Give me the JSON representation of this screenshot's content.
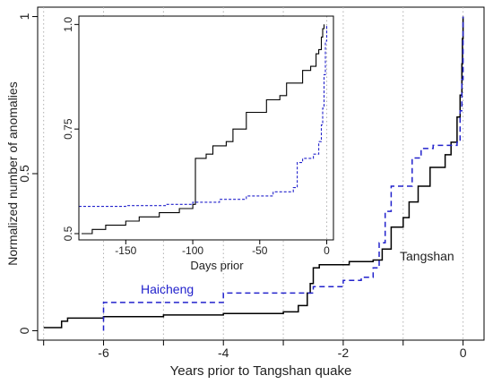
{
  "chart_data": [
    {
      "type": "line",
      "xlabel": "Years prior to Tangshan quake",
      "ylabel": "Normalized number of anomalies",
      "xlim": [
        -7.1,
        0.35
      ],
      "ylim": [
        -0.03,
        1.03
      ],
      "x_ticks": [
        -6,
        -4,
        -2,
        0
      ],
      "x_minor_ticks": [
        -7,
        -5,
        -3,
        -1
      ],
      "y_ticks": [
        0,
        0.5,
        1
      ],
      "y_tick_labels": [
        "0",
        "0.5",
        "1"
      ],
      "grid": "vertical dotted lines at integer years",
      "annotations": [
        "Tangshan",
        "Haicheng"
      ],
      "series": [
        {
          "name": "Tangshan",
          "color": "#000000",
          "style": "solid",
          "points": [
            [
              -7.0,
              0.01
            ],
            [
              -6.7,
              0.03
            ],
            [
              -6.6,
              0.04
            ],
            [
              -6.0,
              0.045
            ],
            [
              -5.0,
              0.05
            ],
            [
              -4.0,
              0.055
            ],
            [
              -3.0,
              0.06
            ],
            [
              -2.75,
              0.08
            ],
            [
              -2.6,
              0.12
            ],
            [
              -2.55,
              0.15
            ],
            [
              -2.5,
              0.2
            ],
            [
              -2.4,
              0.21
            ],
            [
              -1.9,
              0.22
            ],
            [
              -1.5,
              0.225
            ],
            [
              -1.35,
              0.26
            ],
            [
              -1.2,
              0.33
            ],
            [
              -1.0,
              0.36
            ],
            [
              -0.9,
              0.41
            ],
            [
              -0.75,
              0.46
            ],
            [
              -0.55,
              0.52
            ],
            [
              -0.3,
              0.56
            ],
            [
              -0.2,
              0.6
            ],
            [
              -0.1,
              0.68
            ],
            [
              -0.05,
              0.75
            ],
            [
              -0.02,
              0.85
            ],
            [
              -0.01,
              0.93
            ],
            [
              0,
              1.0
            ]
          ]
        },
        {
          "name": "Haicheng",
          "color": "#2222cc",
          "style": "dashed",
          "points": [
            [
              -6.0,
              0.0
            ],
            [
              -6.0,
              0.09
            ],
            [
              -4.0,
              0.1
            ],
            [
              -4.0,
              0.12
            ],
            [
              -2.5,
              0.14
            ],
            [
              -2.0,
              0.16
            ],
            [
              -1.7,
              0.17
            ],
            [
              -1.5,
              0.2
            ],
            [
              -1.4,
              0.28
            ],
            [
              -1.3,
              0.38
            ],
            [
              -1.2,
              0.46
            ],
            [
              -1.0,
              0.46
            ],
            [
              -0.85,
              0.55
            ],
            [
              -0.7,
              0.58
            ],
            [
              -0.5,
              0.59
            ],
            [
              -0.1,
              0.6
            ],
            [
              -0.05,
              0.7
            ],
            [
              -0.02,
              0.8
            ],
            [
              0,
              0.95
            ],
            [
              0,
              1.0
            ]
          ]
        }
      ]
    },
    {
      "type": "line",
      "xlabel": "Days prior",
      "ylabel": "",
      "xlim": [
        -185,
        5
      ],
      "ylim": [
        0.485,
        1.02
      ],
      "x_ticks": [
        -150,
        -100,
        -50,
        0
      ],
      "y_ticks": [
        0.5,
        0.75,
        1.0
      ],
      "y_tick_labels": [
        "0.5",
        "0.75",
        "1.0"
      ],
      "grid": "vertical dotted line at 0",
      "series": [
        {
          "name": "Tangshan",
          "color": "#000000",
          "style": "solid",
          "points": [
            [
              -183,
              0.5
            ],
            [
              -175,
              0.51
            ],
            [
              -165,
              0.52
            ],
            [
              -150,
              0.53
            ],
            [
              -140,
              0.54
            ],
            [
              -125,
              0.55
            ],
            [
              -110,
              0.56
            ],
            [
              -100,
              0.57
            ],
            [
              -98,
              0.68
            ],
            [
              -90,
              0.69
            ],
            [
              -85,
              0.71
            ],
            [
              -75,
              0.72
            ],
            [
              -70,
              0.75
            ],
            [
              -60,
              0.79
            ],
            [
              -50,
              0.79
            ],
            [
              -45,
              0.82
            ],
            [
              -35,
              0.83
            ],
            [
              -30,
              0.86
            ],
            [
              -25,
              0.86
            ],
            [
              -18,
              0.89
            ],
            [
              -12,
              0.9
            ],
            [
              -8,
              0.93
            ],
            [
              -6,
              0.94
            ],
            [
              -4,
              0.97
            ],
            [
              -3,
              0.99
            ],
            [
              -2,
              1.0
            ]
          ]
        },
        {
          "name": "Haicheng",
          "color": "#2222cc",
          "style": "dashed",
          "points": [
            [
              -185,
              0.565
            ],
            [
              -150,
              0.567
            ],
            [
              -120,
              0.57
            ],
            [
              -100,
              0.575
            ],
            [
              -80,
              0.582
            ],
            [
              -60,
              0.59
            ],
            [
              -40,
              0.6
            ],
            [
              -25,
              0.61
            ],
            [
              -22,
              0.67
            ],
            [
              -18,
              0.68
            ],
            [
              -10,
              0.69
            ],
            [
              -6,
              0.72
            ],
            [
              -4,
              0.76
            ],
            [
              -3,
              0.8
            ],
            [
              -2,
              0.88
            ],
            [
              -1,
              0.96
            ],
            [
              0,
              1.0
            ]
          ]
        }
      ]
    }
  ]
}
